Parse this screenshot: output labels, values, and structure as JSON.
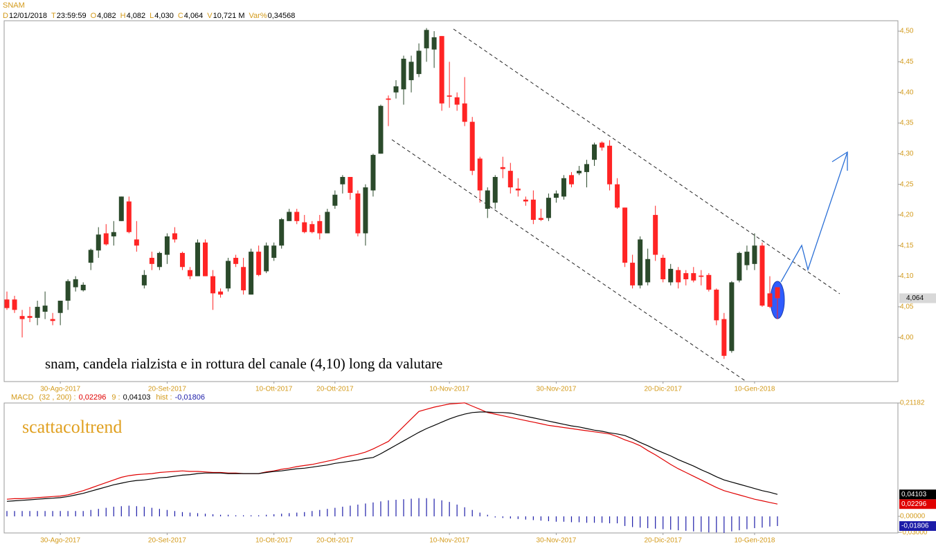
{
  "header": {
    "title": "SNAM",
    "quote": [
      {
        "label": "D",
        "value": "12/01/2018"
      },
      {
        "label": "T",
        "value": "23:59:59"
      },
      {
        "label": "O",
        "value": "4,082"
      },
      {
        "label": "H",
        "value": "4,082"
      },
      {
        "label": "L",
        "value": "4,030"
      },
      {
        "label": "C",
        "value": "4,064"
      },
      {
        "label": "V",
        "value": "10,721 M"
      },
      {
        "label": "Var%",
        "value": "0,34568"
      }
    ]
  },
  "chart_data": [
    {
      "type": "candlestick",
      "annotation": "snam, candela rialzista e in rottura del canale (4,10) long da valutare",
      "categories": [
        null,
        null,
        null,
        null,
        null,
        null,
        null,
        "30-Ago-2017",
        null,
        null,
        null,
        null,
        null,
        null,
        null,
        null,
        null,
        null,
        null,
        null,
        null,
        "20-Set-2017",
        null,
        null,
        null,
        null,
        null,
        null,
        null,
        null,
        null,
        null,
        null,
        null,
        null,
        "10-Ott-2017",
        null,
        null,
        null,
        null,
        null,
        null,
        null,
        "20-Ott-2017",
        null,
        null,
        null,
        null,
        null,
        null,
        null,
        null,
        null,
        null,
        null,
        null,
        null,
        null,
        "10-Nov-2017",
        null,
        null,
        null,
        null,
        null,
        null,
        null,
        null,
        null,
        null,
        null,
        null,
        null,
        "30-Nov-2017",
        null,
        null,
        null,
        null,
        null,
        null,
        null,
        null,
        null,
        null,
        null,
        null,
        null,
        "20-Dic-2017",
        null,
        null,
        null,
        null,
        null,
        null,
        null,
        null,
        null,
        null,
        null,
        "10-Gen-2018",
        null,
        null,
        null
      ],
      "open": [
        4.062,
        4.062,
        4.035,
        4.035,
        4.032,
        4.042,
        4.03,
        4.04,
        4.06,
        4.082,
        4.077,
        4.122,
        4.142,
        4.17,
        4.165,
        4.19,
        4.222,
        4.16,
        4.085,
        4.13,
        4.115,
        4.135,
        4.17,
        4.138,
        4.11,
        4.1,
        4.155,
        4.1,
        4.075,
        4.08,
        4.13,
        4.115,
        4.07,
        4.14,
        4.108,
        4.13,
        4.15,
        4.19,
        4.205,
        4.188,
        4.185,
        4.19,
        4.17,
        4.215,
        4.25,
        4.262,
        4.235,
        4.17,
        4.24,
        4.3,
        4.39,
        4.4,
        4.405,
        4.42,
        4.43,
        4.472,
        4.47,
        4.492,
        4.395,
        4.392,
        4.382,
        4.352,
        4.292,
        4.21,
        4.22,
        4.278,
        4.272,
        4.243,
        4.225,
        4.225,
        4.195,
        4.195,
        4.228,
        4.23,
        4.265,
        4.268,
        4.27,
        4.29,
        4.318,
        4.313,
        4.25,
        4.212,
        4.122,
        4.085,
        4.09,
        4.2,
        4.13,
        4.09,
        4.11,
        4.105,
        4.105,
        4.101,
        4.102,
        4.078,
        4.03,
        3.978,
        4.093,
        4.118,
        4.12,
        4.15,
        4.072,
        4.082
      ],
      "high": [
        4.075,
        4.068,
        4.045,
        4.05,
        4.06,
        4.075,
        4.04,
        4.06,
        4.095,
        4.1,
        4.09,
        4.145,
        4.18,
        4.185,
        4.19,
        4.23,
        4.23,
        4.19,
        4.11,
        4.14,
        4.14,
        4.17,
        4.18,
        4.14,
        4.115,
        4.16,
        4.16,
        4.11,
        4.08,
        4.13,
        4.135,
        4.13,
        4.145,
        4.15,
        4.155,
        4.155,
        4.195,
        4.21,
        4.21,
        4.2,
        4.19,
        4.2,
        4.21,
        4.24,
        4.265,
        4.262,
        4.24,
        4.25,
        4.3,
        4.38,
        4.395,
        4.42,
        4.46,
        4.46,
        4.48,
        4.505,
        4.5,
        4.492,
        4.45,
        4.4,
        4.425,
        4.36,
        4.295,
        4.245,
        4.265,
        4.295,
        4.285,
        4.26,
        4.23,
        4.24,
        4.21,
        4.235,
        4.24,
        4.265,
        4.27,
        4.28,
        4.29,
        4.318,
        4.32,
        4.322,
        4.26,
        4.212,
        4.135,
        4.165,
        4.145,
        4.215,
        4.135,
        4.12,
        4.115,
        4.11,
        4.115,
        4.11,
        4.105,
        4.08,
        4.04,
        4.092,
        4.14,
        4.15,
        4.17,
        4.155,
        4.1,
        4.082
      ],
      "low": [
        4.045,
        4.04,
        4.0,
        4.025,
        4.02,
        4.03,
        4.02,
        4.02,
        4.045,
        4.075,
        4.075,
        4.11,
        4.13,
        4.15,
        4.15,
        4.19,
        4.17,
        4.14,
        4.08,
        4.11,
        4.11,
        4.12,
        4.155,
        4.11,
        4.095,
        4.1,
        4.1,
        4.045,
        4.065,
        4.075,
        4.115,
        4.07,
        4.07,
        4.1,
        4.105,
        4.125,
        4.145,
        4.19,
        4.185,
        4.17,
        4.17,
        4.16,
        4.17,
        4.21,
        4.235,
        4.225,
        4.165,
        4.15,
        4.23,
        4.3,
        4.345,
        4.39,
        4.38,
        4.4,
        4.425,
        4.45,
        4.44,
        4.37,
        4.375,
        4.37,
        4.345,
        4.265,
        4.22,
        4.195,
        4.21,
        4.26,
        4.235,
        4.23,
        4.215,
        4.185,
        4.19,
        4.19,
        4.22,
        4.225,
        4.245,
        4.265,
        4.245,
        4.28,
        4.305,
        4.24,
        4.21,
        4.115,
        4.08,
        4.08,
        4.085,
        4.125,
        4.09,
        4.085,
        4.08,
        4.085,
        4.09,
        4.085,
        4.075,
        4.02,
        3.965,
        3.975,
        4.09,
        4.11,
        4.11,
        4.05,
        4.048,
        4.03
      ],
      "close": [
        4.048,
        4.045,
        4.03,
        4.032,
        4.05,
        4.052,
        4.027,
        4.06,
        4.092,
        4.095,
        4.086,
        4.143,
        4.168,
        4.152,
        4.172,
        4.23,
        4.172,
        4.15,
        4.102,
        4.12,
        4.138,
        4.165,
        4.16,
        4.115,
        4.1,
        4.155,
        4.1,
        4.072,
        4.07,
        4.125,
        4.12,
        4.077,
        4.14,
        4.102,
        4.15,
        4.15,
        4.193,
        4.205,
        4.19,
        4.172,
        4.172,
        4.17,
        4.205,
        4.233,
        4.262,
        4.236,
        4.17,
        4.245,
        4.298,
        4.378,
        4.388,
        4.41,
        4.455,
        4.45,
        4.468,
        4.502,
        4.49,
        4.382,
        4.393,
        4.38,
        4.352,
        4.272,
        4.24,
        4.24,
        4.262,
        4.275,
        4.245,
        4.24,
        4.222,
        4.192,
        4.192,
        4.228,
        4.235,
        4.26,
        4.25,
        4.272,
        4.283,
        4.315,
        4.31,
        4.25,
        4.212,
        4.122,
        4.085,
        4.16,
        4.128,
        4.135,
        4.095,
        4.112,
        4.09,
        4.095,
        4.093,
        4.099,
        4.078,
        4.028,
        3.97,
        4.09,
        4.138,
        4.14,
        4.15,
        4.052,
        4.05,
        4.064
      ],
      "up_color": "#2b4a2b",
      "down_color": "#ff2424",
      "last_price": {
        "value": 4.064,
        "label": "4,064"
      },
      "ylim": [
        3.928,
        4.517
      ],
      "yticks": [
        {
          "value": 4.0,
          "label": "4,00"
        },
        {
          "value": 4.05,
          "label": "4,05"
        },
        {
          "value": 4.1,
          "label": "4,10"
        },
        {
          "value": 4.15,
          "label": "4,15"
        },
        {
          "value": 4.2,
          "label": "4,20"
        },
        {
          "value": 4.25,
          "label": "4,25"
        },
        {
          "value": 4.3,
          "label": "4,30"
        },
        {
          "value": 4.35,
          "label": "4,35"
        },
        {
          "value": 4.4,
          "label": "4,40"
        },
        {
          "value": 4.45,
          "label": "4,45"
        },
        {
          "value": 4.5,
          "label": "4,50"
        }
      ]
    },
    {
      "type": "line",
      "watermark": "scattacoltrend",
      "title": "MACD",
      "ylim": [
        -0.031,
        0.2118
      ],
      "yticks": [
        {
          "value": -0.03,
          "label": "-0,03000"
        },
        {
          "value": 0,
          "label": "0,00000"
        },
        {
          "value": 0.21182,
          "label": "0,21182"
        }
      ],
      "series": [
        {
          "name": "(32 , 200) :",
          "color": "#e00000",
          "last_label": "0,02296",
          "values": [
            0.032,
            0.033,
            0.033,
            0.034,
            0.035,
            0.036,
            0.037,
            0.038,
            0.04,
            0.044,
            0.048,
            0.053,
            0.058,
            0.063,
            0.068,
            0.073,
            0.076,
            0.078,
            0.079,
            0.08,
            0.082,
            0.083,
            0.084,
            0.085,
            0.084,
            0.084,
            0.083,
            0.082,
            0.082,
            0.081,
            0.081,
            0.08,
            0.08,
            0.08,
            0.083,
            0.085,
            0.088,
            0.09,
            0.093,
            0.095,
            0.097,
            0.1,
            0.103,
            0.106,
            0.11,
            0.113,
            0.116,
            0.12,
            0.126,
            0.133,
            0.14,
            0.154,
            0.168,
            0.182,
            0.196,
            0.2,
            0.204,
            0.207,
            0.21,
            0.211,
            0.212,
            0.206,
            0.2,
            0.194,
            0.191,
            0.188,
            0.185,
            0.182,
            0.179,
            0.176,
            0.173,
            0.17,
            0.168,
            0.166,
            0.164,
            0.162,
            0.16,
            0.158,
            0.156,
            0.154,
            0.149,
            0.143,
            0.138,
            0.132,
            0.123,
            0.115,
            0.106,
            0.097,
            0.089,
            0.082,
            0.075,
            0.068,
            0.061,
            0.054,
            0.048,
            0.044,
            0.04,
            0.036,
            0.032,
            0.029,
            0.026,
            0.02296
          ]
        },
        {
          "name": "9 :",
          "color": "#000000",
          "last_label": "0,04103",
          "values": [
            0.028,
            0.029,
            0.03,
            0.031,
            0.032,
            0.033,
            0.034,
            0.035,
            0.037,
            0.04,
            0.043,
            0.047,
            0.051,
            0.055,
            0.059,
            0.062,
            0.065,
            0.067,
            0.068,
            0.07,
            0.072,
            0.073,
            0.075,
            0.077,
            0.078,
            0.08,
            0.081,
            0.081,
            0.081,
            0.08,
            0.08,
            0.08,
            0.08,
            0.08,
            0.082,
            0.084,
            0.085,
            0.087,
            0.089,
            0.09,
            0.092,
            0.094,
            0.096,
            0.099,
            0.101,
            0.103,
            0.105,
            0.108,
            0.11,
            0.117,
            0.125,
            0.133,
            0.141,
            0.149,
            0.157,
            0.164,
            0.17,
            0.176,
            0.182,
            0.187,
            0.191,
            0.194,
            0.195,
            0.195,
            0.194,
            0.194,
            0.193,
            0.19,
            0.187,
            0.184,
            0.181,
            0.178,
            0.175,
            0.172,
            0.169,
            0.167,
            0.164,
            0.161,
            0.159,
            0.156,
            0.154,
            0.151,
            0.145,
            0.138,
            0.132,
            0.125,
            0.119,
            0.113,
            0.106,
            0.1,
            0.094,
            0.087,
            0.081,
            0.074,
            0.068,
            0.064,
            0.06,
            0.056,
            0.052,
            0.048,
            0.045,
            0.04103
          ]
        },
        {
          "name": "hist :",
          "color": "#1c1ca8",
          "kind": "bar",
          "last_label": "-0,01806",
          "values": [
            0.01,
            0.01,
            0.01,
            0.01,
            0.01,
            0.01,
            0.01,
            0.01,
            0.01,
            0.01,
            0.01,
            0.012,
            0.014,
            0.016,
            0.018,
            0.019,
            0.02,
            0.019,
            0.018,
            0.016,
            0.014,
            0.012,
            0.01,
            0.008,
            0.007,
            0.006,
            0.005,
            0.004,
            0.003,
            0.003,
            0.002,
            0.002,
            0.002,
            0.002,
            0.003,
            0.004,
            0.005,
            0.006,
            0.007,
            0.008,
            0.01,
            0.012,
            0.014,
            0.016,
            0.018,
            0.02,
            0.022,
            0.024,
            0.026,
            0.028,
            0.03,
            0.031,
            0.032,
            0.033,
            0.034,
            0.034,
            0.033,
            0.03,
            0.027,
            0.022,
            0.017,
            0.012,
            0.007,
            0.003,
            -0.002,
            -0.003,
            -0.004,
            -0.005,
            -0.006,
            -0.007,
            -0.008,
            -0.009,
            -0.01,
            -0.01,
            -0.011,
            -0.011,
            -0.012,
            -0.012,
            -0.012,
            -0.013,
            -0.013,
            -0.018,
            -0.02,
            -0.021,
            -0.022,
            -0.023,
            -0.024,
            -0.025,
            -0.026,
            -0.027,
            -0.028,
            -0.029,
            -0.03,
            -0.03,
            -0.031,
            -0.028,
            -0.026,
            -0.024,
            -0.022,
            -0.021,
            -0.019,
            -0.01806
          ]
        }
      ]
    }
  ]
}
